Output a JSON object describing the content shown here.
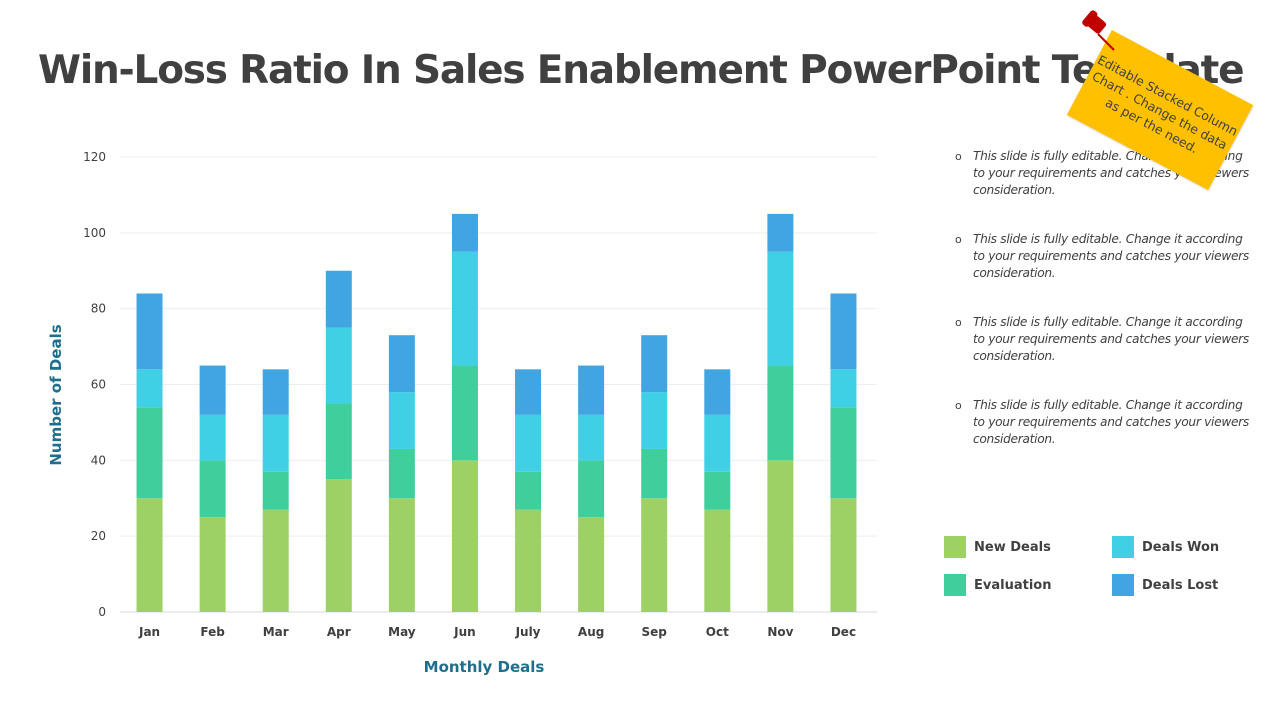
{
  "slide": {
    "title": "Win-Loss Ratio In Sales Enablement PowerPoint Template",
    "sticky_note": "Editable Stacked Column Chart . Change the data as per the need.",
    "bullets": [
      "This slide is fully editable. Change it according to your requirements and catches your viewers consideration.",
      "This slide is fully editable. Change it according to your requirements and catches your viewers consideration.",
      "This slide is fully editable. Change it according to your requirements and catches your viewers consideration.",
      "This slide is fully editable. Change it according to your requirements and catches your viewers consideration."
    ],
    "bullet_glyph": "o",
    "colors": {
      "title": "#404040",
      "axis_title": "#1f6e8c",
      "sticky": "#ffc000",
      "pin": "#c00000"
    }
  },
  "chart_data": {
    "type": "bar",
    "stacked": true,
    "title": "",
    "xlabel": "Monthly Deals",
    "ylabel": "Number of  Deals",
    "categories": [
      "Jan",
      "Feb",
      "Mar",
      "Apr",
      "May",
      "Jun",
      "July",
      "Aug",
      "Sep",
      "Oct",
      "Nov",
      "Dec"
    ],
    "series": [
      {
        "name": "New Deals",
        "color": "#9dd166",
        "values": [
          30,
          25,
          27,
          35,
          30,
          40,
          27,
          25,
          30,
          27,
          40,
          30
        ]
      },
      {
        "name": "Evaluation",
        "color": "#3ecf9c",
        "values": [
          24,
          15,
          10,
          20,
          13,
          25,
          10,
          15,
          13,
          10,
          25,
          24
        ]
      },
      {
        "name": "Deals Won",
        "color": "#40d0e6",
        "values": [
          10,
          12,
          15,
          20,
          15,
          30,
          15,
          12,
          15,
          15,
          30,
          10
        ]
      },
      {
        "name": "Deals Lost",
        "color": "#40a5e0",
        "values": [
          20,
          13,
          12,
          15,
          15,
          10,
          12,
          13,
          15,
          12,
          10,
          20
        ]
      }
    ],
    "ylim": [
      0,
      120
    ],
    "yticks": [
      0,
      20,
      40,
      60,
      80,
      100,
      120
    ],
    "grid": true,
    "legend": "right"
  }
}
